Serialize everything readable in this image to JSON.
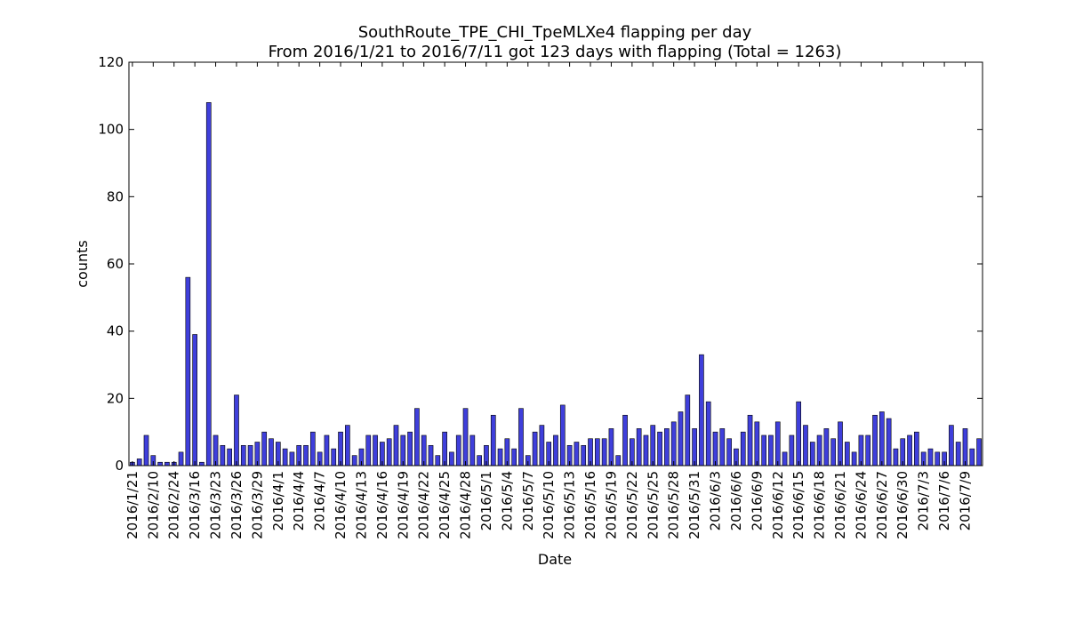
{
  "chart_data": {
    "type": "bar",
    "title": "SouthRoute_TPE_CHI_TpeMLXe4 flapping per day",
    "subtitle": "From 2016/1/21 to 2016/7/11 got 123 days with flapping (Total = 1263)",
    "xlabel": "Date",
    "ylabel": "counts",
    "ylim": [
      0,
      120
    ],
    "yticks": [
      0,
      20,
      40,
      60,
      80,
      100,
      120
    ],
    "grid": false,
    "colors": {
      "bar": "#3f3fdb",
      "edge": "#000000"
    },
    "xtick_labels": [
      "2016/1/21",
      "2016/2/10",
      "2016/2/24",
      "2016/3/16",
      "2016/3/23",
      "2016/3/26",
      "2016/3/29",
      "2016/4/1",
      "2016/4/4",
      "2016/4/7",
      "2016/4/10",
      "2016/4/13",
      "2016/4/16",
      "2016/4/19",
      "2016/4/22",
      "2016/4/25",
      "2016/4/28",
      "2016/5/1",
      "2016/5/4",
      "2016/5/7",
      "2016/5/10",
      "2016/5/13",
      "2016/5/16",
      "2016/5/19",
      "2016/5/22",
      "2016/5/25",
      "2016/5/28",
      "2016/5/31",
      "2016/6/3",
      "2016/6/6",
      "2016/6/9",
      "2016/6/12",
      "2016/6/15",
      "2016/6/18",
      "2016/6/21",
      "2016/6/24",
      "2016/6/27",
      "2016/6/30",
      "2016/7/3",
      "2016/7/6",
      "2016/7/9"
    ],
    "xtick_every": 3,
    "values": [
      1,
      2,
      9,
      3,
      1,
      1,
      1,
      4,
      56,
      39,
      1,
      108,
      9,
      6,
      5,
      21,
      6,
      6,
      7,
      10,
      8,
      7,
      5,
      4,
      6,
      6,
      10,
      4,
      9,
      5,
      10,
      12,
      3,
      5,
      9,
      9,
      7,
      8,
      12,
      9,
      10,
      17,
      9,
      6,
      3,
      10,
      4,
      9,
      17,
      9,
      3,
      6,
      15,
      5,
      8,
      5,
      17,
      3,
      10,
      12,
      7,
      9,
      18,
      6,
      7,
      6,
      8,
      8,
      8,
      11,
      3,
      15,
      8,
      11,
      9,
      12,
      10,
      11,
      13,
      16,
      21,
      11,
      33,
      19,
      10,
      11,
      8,
      5,
      10,
      15,
      13,
      9,
      9,
      13,
      4,
      9,
      19,
      12,
      7,
      9,
      11,
      8,
      13,
      7,
      4,
      9,
      9,
      15,
      16,
      14,
      5,
      8,
      9,
      10,
      4,
      5,
      4,
      4,
      12,
      7,
      11,
      5,
      8
    ]
  }
}
